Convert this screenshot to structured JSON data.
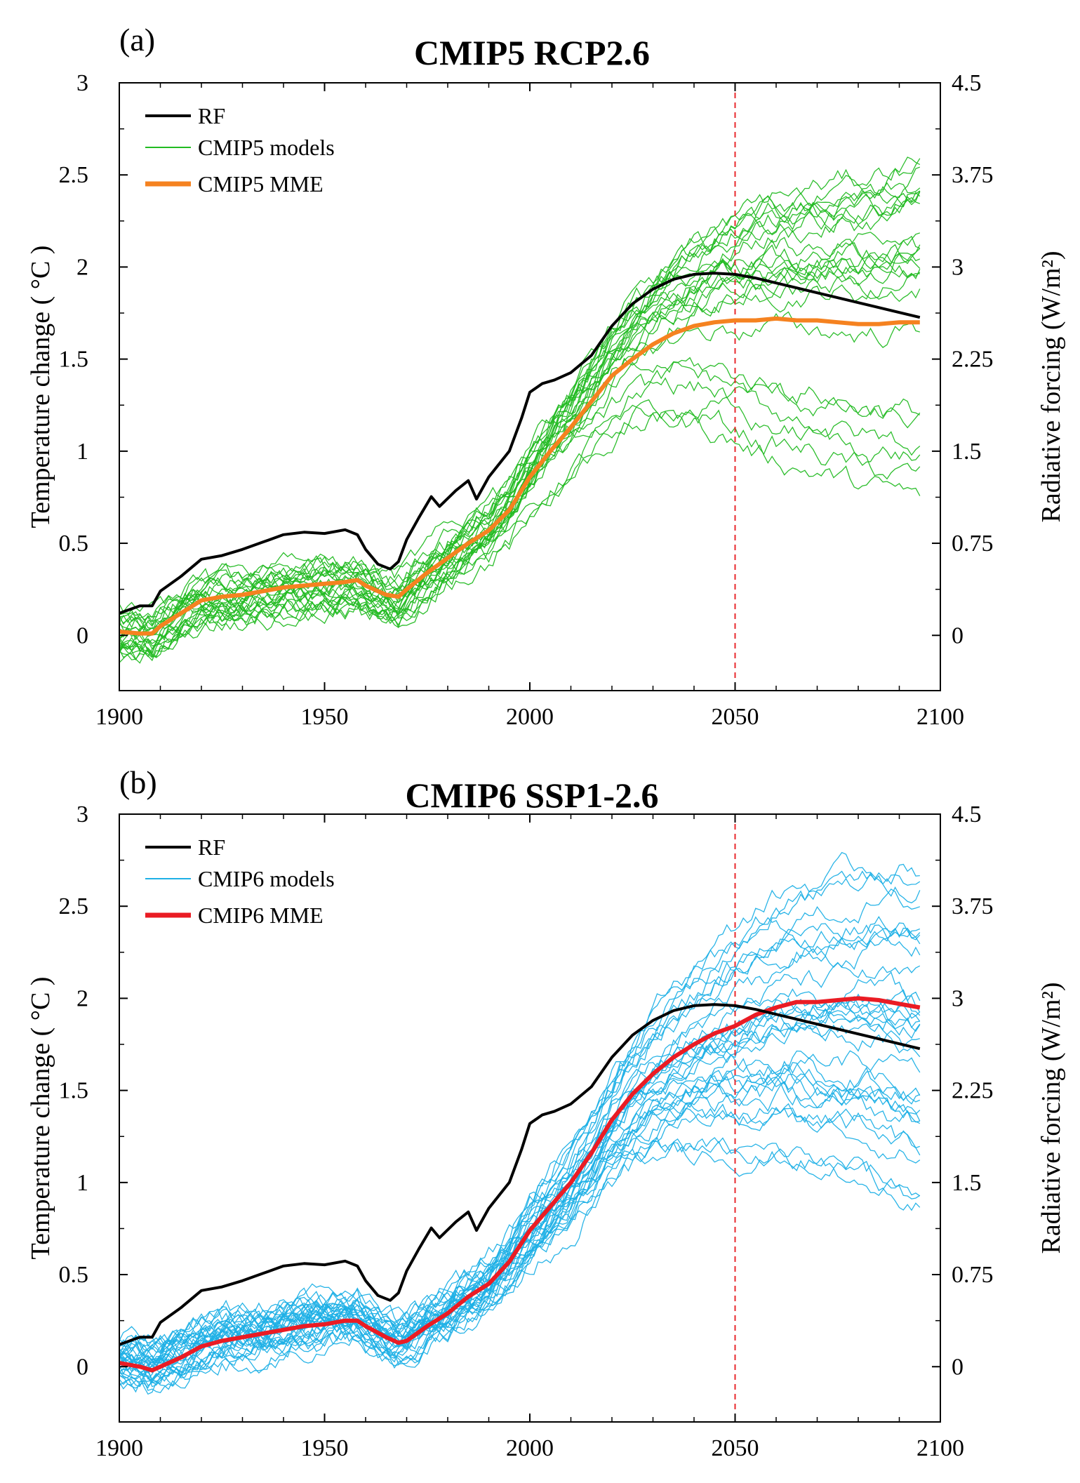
{
  "chart_data": [
    {
      "type": "line",
      "panel_label": "(a)",
      "title": "CMIP5 RCP2.6",
      "xlabel": "",
      "ylabel": "Temperature change ( °C )",
      "ylabel_right": "Radiative forcing (W/m²)",
      "xlim": [
        1900,
        2100
      ],
      "ylim": [
        -0.3,
        3.0
      ],
      "ylim_right": [
        -0.45,
        4.5
      ],
      "xticks": [
        "1900",
        "1950",
        "2000",
        "2050",
        "2100"
      ],
      "yticks": [
        "0",
        "0.5",
        "1",
        "1.5",
        "2",
        "2.5",
        "3"
      ],
      "yticks_right": [
        "0",
        "0.75",
        "1.5",
        "2.25",
        "3",
        "3.75",
        "4.5"
      ],
      "reference_line_x": 2050,
      "legend": {
        "placement": "top-left",
        "entries": [
          "RF",
          "CMIP5 models",
          "CMIP5 MME"
        ]
      },
      "colors": {
        "rf": "#000000",
        "models": "#22bb22",
        "mme": "#f58220",
        "ref": "#e8282d"
      },
      "series": [
        {
          "name": "RF",
          "axis": "right",
          "x": [
            1900,
            1905,
            1908,
            1910,
            1915,
            1920,
            1925,
            1930,
            1935,
            1940,
            1945,
            1950,
            1955,
            1958,
            1960,
            1963,
            1966,
            1968,
            1970,
            1973,
            1976,
            1978,
            1982,
            1985,
            1987,
            1990,
            1995,
            1998,
            2000,
            2003,
            2006,
            2010,
            2015,
            2020,
            2025,
            2030,
            2035,
            2040,
            2045,
            2050,
            2055,
            2060,
            2065,
            2070,
            2075,
            2080,
            2085,
            2090,
            2095
          ],
          "values": [
            0.18,
            0.24,
            0.24,
            0.36,
            0.48,
            0.62,
            0.65,
            0.7,
            0.76,
            0.82,
            0.84,
            0.83,
            0.86,
            0.82,
            0.7,
            0.58,
            0.54,
            0.6,
            0.78,
            0.96,
            1.13,
            1.05,
            1.18,
            1.26,
            1.11,
            1.29,
            1.5,
            1.77,
            1.98,
            2.05,
            2.08,
            2.14,
            2.28,
            2.52,
            2.7,
            2.82,
            2.9,
            2.94,
            2.95,
            2.94,
            2.91,
            2.87,
            2.83,
            2.79,
            2.75,
            2.71,
            2.67,
            2.63,
            2.59
          ]
        },
        {
          "name": "CMIP5 MME",
          "axis": "left",
          "x": [
            1900,
            1905,
            1908,
            1910,
            1915,
            1920,
            1925,
            1930,
            1935,
            1940,
            1945,
            1950,
            1955,
            1958,
            1960,
            1965,
            1968,
            1970,
            1975,
            1980,
            1985,
            1990,
            1995,
            2000,
            2005,
            2010,
            2015,
            2020,
            2025,
            2030,
            2035,
            2040,
            2045,
            2050,
            2055,
            2060,
            2065,
            2070,
            2075,
            2080,
            2085,
            2090,
            2095
          ],
          "values": [
            0.02,
            0.01,
            0.01,
            0.05,
            0.12,
            0.19,
            0.21,
            0.22,
            0.24,
            0.26,
            0.27,
            0.28,
            0.29,
            0.3,
            0.27,
            0.22,
            0.21,
            0.25,
            0.34,
            0.42,
            0.5,
            0.57,
            0.68,
            0.86,
            1.0,
            1.13,
            1.27,
            1.41,
            1.5,
            1.58,
            1.64,
            1.68,
            1.7,
            1.71,
            1.71,
            1.72,
            1.71,
            1.71,
            1.7,
            1.69,
            1.69,
            1.7,
            1.7
          ]
        }
      ]
    },
    {
      "type": "line",
      "panel_label": "(b)",
      "title": "CMIP6 SSP1-2.6",
      "xlabel": "",
      "ylabel": "Temperature change ( °C )",
      "ylabel_right": "Radiative forcing (W/m²)",
      "xlim": [
        1900,
        2100
      ],
      "ylim": [
        -0.3,
        3.0
      ],
      "ylim_right": [
        -0.45,
        4.5
      ],
      "xticks": [
        "1900",
        "1950",
        "2000",
        "2050",
        "2100"
      ],
      "yticks": [
        "0",
        "0.5",
        "1",
        "1.5",
        "2",
        "2.5",
        "3"
      ],
      "yticks_right": [
        "0",
        "0.75",
        "1.5",
        "2.25",
        "3",
        "3.75",
        "4.5"
      ],
      "reference_line_x": 2050,
      "legend": {
        "placement": "top-left",
        "entries": [
          "RF",
          "CMIP6 models",
          "CMIP6 MME"
        ]
      },
      "colors": {
        "rf": "#000000",
        "models": "#1eb0e6",
        "mme": "#ea1c24",
        "ref": "#e8282d"
      },
      "series": [
        {
          "name": "RF",
          "axis": "right",
          "x": [
            1900,
            1905,
            1908,
            1910,
            1915,
            1920,
            1925,
            1930,
            1935,
            1940,
            1945,
            1950,
            1955,
            1958,
            1960,
            1963,
            1966,
            1968,
            1970,
            1973,
            1976,
            1978,
            1982,
            1985,
            1987,
            1990,
            1995,
            1998,
            2000,
            2003,
            2006,
            2010,
            2015,
            2020,
            2025,
            2030,
            2035,
            2040,
            2045,
            2050,
            2055,
            2060,
            2065,
            2070,
            2075,
            2080,
            2085,
            2090,
            2095
          ],
          "values": [
            0.18,
            0.24,
            0.24,
            0.36,
            0.48,
            0.62,
            0.65,
            0.7,
            0.76,
            0.82,
            0.84,
            0.83,
            0.86,
            0.82,
            0.7,
            0.58,
            0.54,
            0.6,
            0.78,
            0.96,
            1.13,
            1.05,
            1.18,
            1.26,
            1.11,
            1.29,
            1.5,
            1.77,
            1.98,
            2.05,
            2.08,
            2.14,
            2.28,
            2.52,
            2.7,
            2.82,
            2.9,
            2.94,
            2.95,
            2.94,
            2.91,
            2.87,
            2.83,
            2.79,
            2.75,
            2.71,
            2.67,
            2.63,
            2.59
          ]
        },
        {
          "name": "CMIP6 MME",
          "axis": "left",
          "x": [
            1900,
            1905,
            1908,
            1910,
            1915,
            1920,
            1925,
            1930,
            1935,
            1940,
            1945,
            1950,
            1955,
            1958,
            1960,
            1965,
            1968,
            1970,
            1975,
            1980,
            1985,
            1990,
            1995,
            2000,
            2005,
            2010,
            2015,
            2020,
            2025,
            2030,
            2035,
            2040,
            2045,
            2050,
            2055,
            2060,
            2065,
            2070,
            2075,
            2080,
            2085,
            2090,
            2095
          ],
          "values": [
            0.02,
            0.0,
            -0.02,
            0.0,
            0.05,
            0.11,
            0.14,
            0.16,
            0.18,
            0.2,
            0.22,
            0.23,
            0.25,
            0.25,
            0.22,
            0.16,
            0.13,
            0.14,
            0.22,
            0.29,
            0.38,
            0.45,
            0.57,
            0.74,
            0.87,
            1.0,
            1.16,
            1.34,
            1.48,
            1.59,
            1.68,
            1.75,
            1.81,
            1.85,
            1.91,
            1.95,
            1.98,
            1.98,
            1.99,
            2.0,
            1.99,
            1.97,
            1.95
          ]
        }
      ],
      "annotations": []
    }
  ]
}
